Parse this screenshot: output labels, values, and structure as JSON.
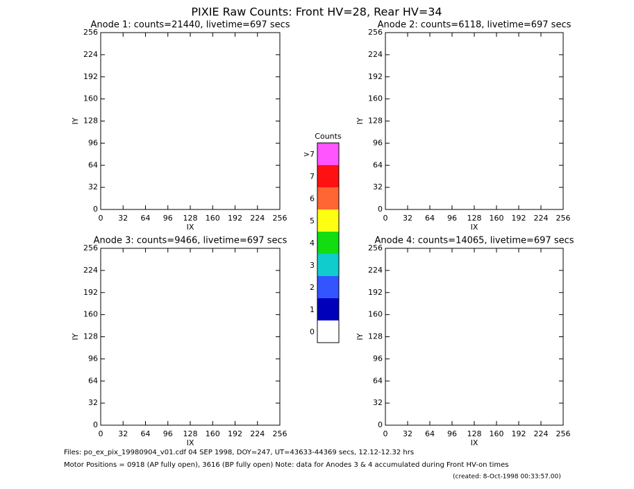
{
  "title": "PIXIE Raw Counts:  Front HV=28, Rear HV=34",
  "chart_data": [
    {
      "type": "heatmap",
      "title": "Anode 1: counts=21440, livetime=697 secs",
      "xlabel": "IX",
      "ylabel": "IY",
      "xlim": [
        0,
        256
      ],
      "ylim": [
        0,
        256
      ],
      "xticks": [
        0,
        32,
        64,
        96,
        128,
        160,
        192,
        224,
        256
      ],
      "yticks": [
        0,
        32,
        64,
        96,
        128,
        160,
        192,
        224,
        256
      ]
    },
    {
      "type": "heatmap",
      "title": "Anode 2: counts=6118, livetime=697 secs",
      "xlabel": "IX",
      "ylabel": "IY",
      "xlim": [
        0,
        256
      ],
      "ylim": [
        0,
        256
      ],
      "xticks": [
        0,
        32,
        64,
        96,
        128,
        160,
        192,
        224,
        256
      ],
      "yticks": [
        0,
        32,
        64,
        96,
        128,
        160,
        192,
        224,
        256
      ]
    },
    {
      "type": "heatmap",
      "title": "Anode 3: counts=9466, livetime=697 secs",
      "xlabel": "IX",
      "ylabel": "IY",
      "xlim": [
        0,
        256
      ],
      "ylim": [
        0,
        256
      ],
      "xticks": [
        0,
        32,
        64,
        96,
        128,
        160,
        192,
        224,
        256
      ],
      "yticks": [
        0,
        32,
        64,
        96,
        128,
        160,
        192,
        224,
        256
      ]
    },
    {
      "type": "heatmap",
      "title": "Anode 4: counts=14065, livetime=697 secs",
      "xlabel": "IX",
      "ylabel": "IY",
      "xlim": [
        0,
        256
      ],
      "ylim": [
        0,
        256
      ],
      "xticks": [
        0,
        32,
        64,
        96,
        128,
        160,
        192,
        224,
        256
      ],
      "yticks": [
        0,
        32,
        64,
        96,
        128,
        160,
        192,
        224,
        256
      ]
    }
  ],
  "colorbar": {
    "label": "Counts",
    "levels": [
      {
        "label": ">7",
        "color": "#ff55ff"
      },
      {
        "label": "7",
        "color": "#ff1111"
      },
      {
        "label": "6",
        "color": "#ff6633"
      },
      {
        "label": "5",
        "color": "#ffff11"
      },
      {
        "label": "4",
        "color": "#11dd11"
      },
      {
        "label": "3",
        "color": "#11cccc"
      },
      {
        "label": "2",
        "color": "#3355ff"
      },
      {
        "label": "1",
        "color": "#0000bb"
      },
      {
        "label": "0",
        "color": "#ffffff"
      }
    ]
  },
  "footer": {
    "files": "Files: po_ex_pix_19980904_v01.cdf    04 SEP 1998, DOY=247, UT=43633-44369 secs, 12.12-12.32 hrs",
    "motor": "Motor Positions = 0918 (AP fully open), 3616 (BP fully open)    Note: data for Anodes 3 & 4 accumulated during Front HV-on times",
    "created": "(created:  8-Oct-1998 00:33:57.00)"
  }
}
